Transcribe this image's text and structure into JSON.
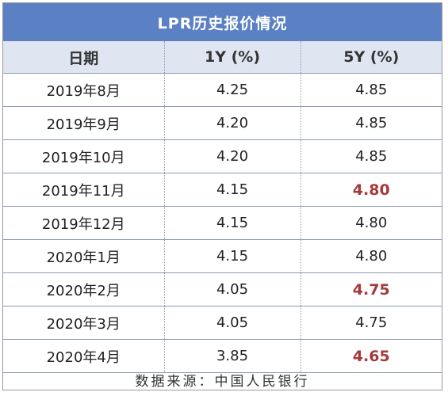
{
  "table": {
    "title": "LPR历史报价情况",
    "headers": [
      "日期",
      "1Y (%)",
      "5Y (%)"
    ],
    "highlight_color": "#a53a3a",
    "header_bg": "#5b80c4",
    "rows": [
      {
        "date": "2019年8月",
        "y1": "4.25",
        "y5": "4.85",
        "y5_highlight": false
      },
      {
        "date": "2019年9月",
        "y1": "4.20",
        "y5": "4.85",
        "y5_highlight": false
      },
      {
        "date": "2019年10月",
        "y1": "4.20",
        "y5": "4.85",
        "y5_highlight": false
      },
      {
        "date": "2019年11月",
        "y1": "4.15",
        "y5": "4.80",
        "y5_highlight": true
      },
      {
        "date": "2019年12月",
        "y1": "4.15",
        "y5": "4.80",
        "y5_highlight": false
      },
      {
        "date": "2020年1月",
        "y1": "4.15",
        "y5": "4.80",
        "y5_highlight": false
      },
      {
        "date": "2020年2月",
        "y1": "4.05",
        "y5": "4.75",
        "y5_highlight": true
      },
      {
        "date": "2020年3月",
        "y1": "4.05",
        "y5": "4.75",
        "y5_highlight": false
      },
      {
        "date": "2020年4月",
        "y1": "3.85",
        "y5": "4.65",
        "y5_highlight": true
      }
    ],
    "source": "数据来源：中国人民银行"
  }
}
